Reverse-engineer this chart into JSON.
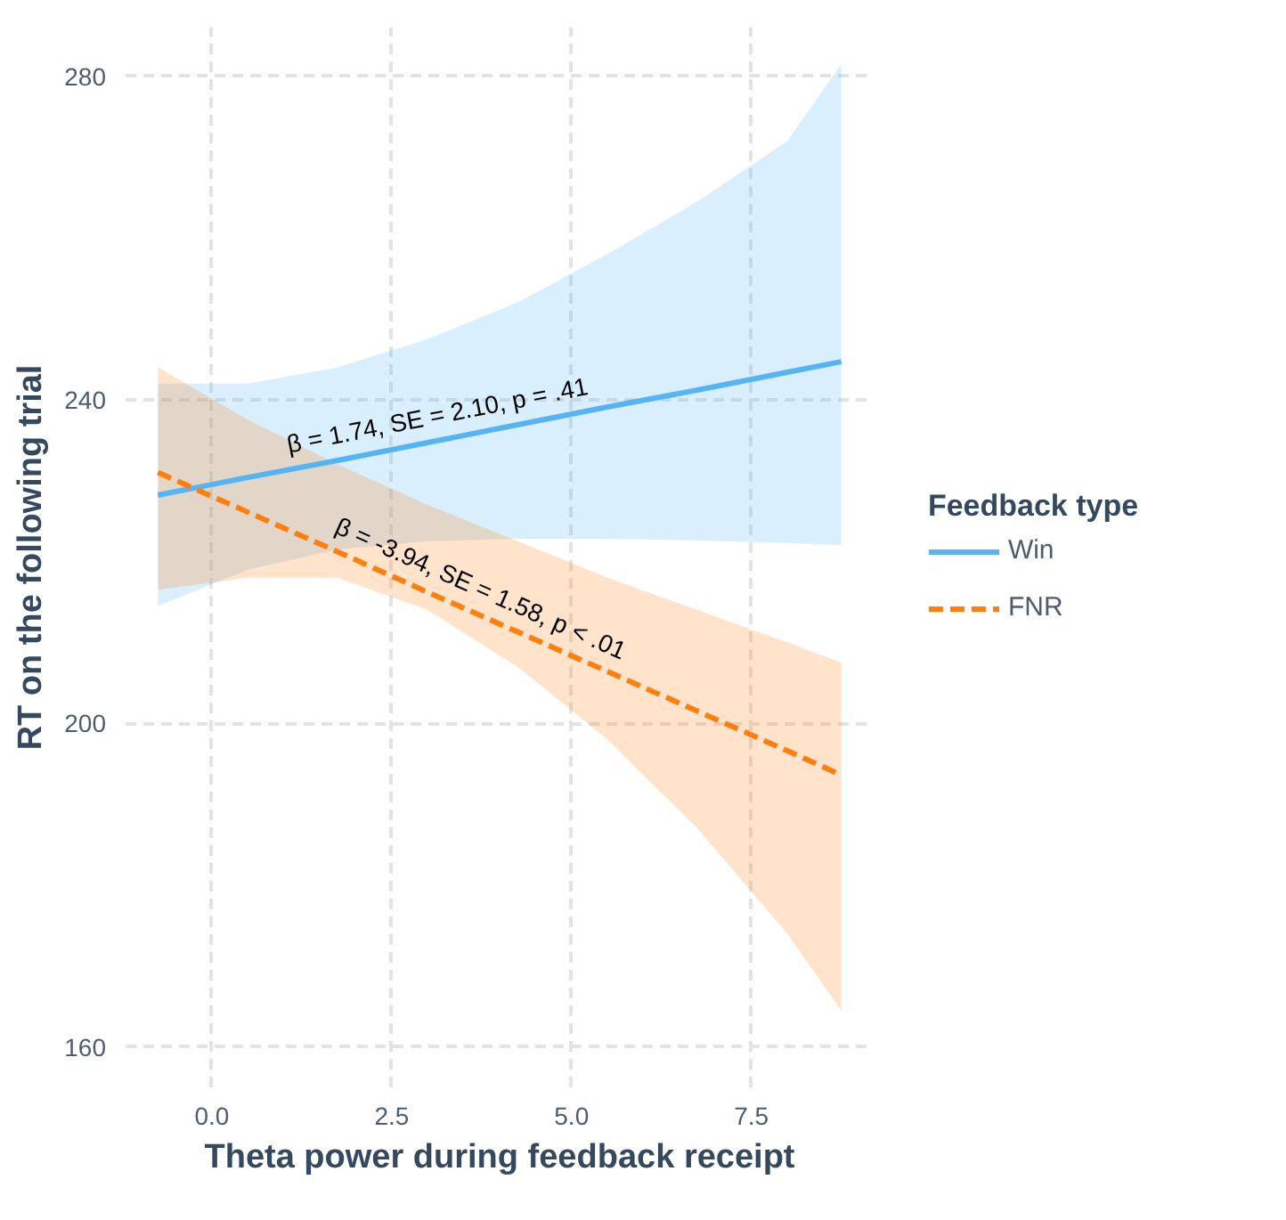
{
  "chart_data": {
    "type": "line",
    "xlabel": "Theta power during feedback receipt",
    "ylabel": "RT on the following trial",
    "legend_title": "Feedback type",
    "legend": "right",
    "grid": true,
    "marker": "none",
    "xlim": [
      -1.2,
      9.2
    ],
    "ylim": [
      155,
      286
    ],
    "xticks": [
      {
        "value": 0,
        "label": "0.0"
      },
      {
        "value": 2.5,
        "label": "2.5"
      },
      {
        "value": 5,
        "label": "5.0"
      },
      {
        "value": 7.5,
        "label": "7.5"
      }
    ],
    "yticks": [
      160,
      200,
      240,
      280
    ],
    "x": [
      -0.75,
      0.5,
      1.75,
      3,
      4.25,
      5.5,
      6.75,
      8,
      8.75
    ],
    "series": [
      {
        "name": "Win",
        "color": "#56b4f5",
        "line_style": "solid",
        "values": [
          228.2,
          230.4,
          232.5,
          234.7,
          236.9,
          239.1,
          241.2,
          243.4,
          244.7
        ],
        "lower": [
          214.5,
          219,
          221.5,
          222.5,
          222.8,
          222.8,
          222.6,
          222.3,
          222
        ],
        "upper": [
          242,
          242,
          244,
          247.5,
          252,
          258,
          264.5,
          272,
          281.5
        ]
      },
      {
        "name": "FNR",
        "color": "#ff7f0e",
        "line_style": "dashed",
        "values": [
          231,
          226.1,
          221.2,
          216.2,
          211.3,
          206.4,
          201.5,
          196.6,
          193.6
        ],
        "lower": [
          216.5,
          218,
          218,
          214,
          207,
          198,
          187,
          174,
          164.5
        ],
        "upper": [
          244,
          237.5,
          232,
          227,
          222.5,
          218,
          214,
          210,
          207.5
        ]
      }
    ],
    "annotations": [
      {
        "text": "β = 1.74, SE = 2.10, p = .41",
        "x": 3.2,
        "y": 235.1
      },
      {
        "text": "β = -3.94, SE = 1.58, p < .01",
        "x": 3.6,
        "y": 213.9
      }
    ]
  }
}
